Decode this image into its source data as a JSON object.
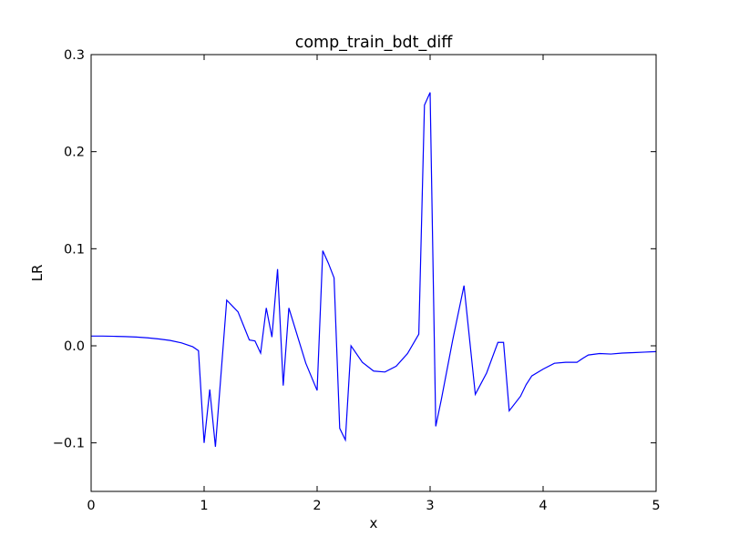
{
  "chart_data": {
    "type": "line",
    "title": "comp_train_bdt_diff",
    "xlabel": "x",
    "ylabel": "LR",
    "xlim": [
      0,
      5
    ],
    "ylim": [
      -0.15,
      0.3
    ],
    "grid": false,
    "line_color": "#0000ff",
    "xticks": [
      0,
      1,
      2,
      3,
      4,
      5
    ],
    "xtick_labels": [
      "0",
      "1",
      "2",
      "3",
      "4",
      "5"
    ],
    "yticks": [
      -0.1,
      0.0,
      0.1,
      0.2,
      0.3
    ],
    "ytick_labels": [
      "−0.1",
      "0.0",
      "0.1",
      "0.2",
      "0.3"
    ],
    "series": [
      {
        "x": [
          0.0,
          0.1,
          0.2,
          0.3,
          0.4,
          0.5,
          0.6,
          0.7,
          0.8,
          0.9,
          0.95,
          1.0,
          1.05,
          1.1,
          1.2,
          1.3,
          1.35,
          1.4,
          1.45,
          1.5,
          1.55,
          1.6,
          1.65,
          1.7,
          1.75,
          1.8,
          1.9,
          2.0,
          2.05,
          2.1,
          2.15,
          2.2,
          2.25,
          2.3,
          2.4,
          2.5,
          2.6,
          2.7,
          2.8,
          2.9,
          2.95,
          3.0,
          3.05,
          3.1,
          3.2,
          3.3,
          3.4,
          3.5,
          3.6,
          3.65,
          3.7,
          3.8,
          3.85,
          3.9,
          4.0,
          4.1,
          4.2,
          4.3,
          4.35,
          4.4,
          4.5,
          4.6,
          4.7,
          4.8,
          4.9,
          5.0
        ],
        "y": [
          0.01,
          0.01,
          0.0098,
          0.0095,
          0.009,
          0.0082,
          0.007,
          0.0055,
          0.003,
          -0.001,
          -0.005,
          -0.1,
          -0.045,
          -0.104,
          0.047,
          0.035,
          0.0205,
          0.006,
          0.005,
          -0.0075,
          0.039,
          0.009,
          0.079,
          -0.041,
          0.039,
          0.02,
          -0.018,
          -0.046,
          0.098,
          0.085,
          0.07,
          -0.085,
          -0.097,
          0.0,
          -0.017,
          -0.026,
          -0.027,
          -0.021,
          -0.008,
          0.012,
          0.248,
          0.261,
          -0.083,
          -0.055,
          0.006,
          0.062,
          -0.05,
          -0.028,
          0.0035,
          0.0035,
          -0.067,
          -0.052,
          -0.04,
          -0.031,
          -0.024,
          -0.018,
          -0.017,
          -0.017,
          -0.013,
          -0.0095,
          -0.008,
          -0.0085,
          -0.0075,
          -0.007,
          -0.0065,
          -0.006
        ]
      }
    ]
  }
}
